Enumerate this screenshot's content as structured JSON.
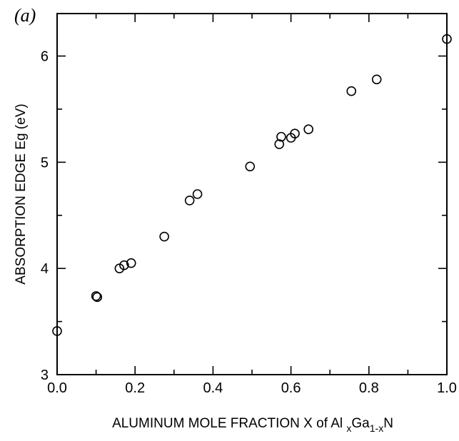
{
  "chart_data": {
    "type": "scatter",
    "panel_label": "(a)",
    "xlabel": {
      "main": "ALUMINUM MOLE FRACTION  X  of  Al ",
      "sub1": "x",
      "mid": "Ga",
      "sub2": "1-x",
      "end": "N"
    },
    "ylabel": "ABSORPTION EDGE  Eg  (eV)",
    "xlim": [
      0.0,
      1.0
    ],
    "ylim": [
      3.0,
      6.4
    ],
    "xticks": [
      "0.0",
      "0.2",
      "0.4",
      "0.6",
      "0.8",
      "1.0"
    ],
    "yticks": [
      "3",
      "4",
      "5",
      "6"
    ],
    "grid": false,
    "series": [
      {
        "points": [
          {
            "x": 0.0,
            "y": 3.41
          },
          {
            "x": 0.1,
            "y": 3.74
          },
          {
            "x": 0.103,
            "y": 3.73
          },
          {
            "x": 0.16,
            "y": 4.0
          },
          {
            "x": 0.172,
            "y": 4.03
          },
          {
            "x": 0.19,
            "y": 4.05
          },
          {
            "x": 0.275,
            "y": 4.3
          },
          {
            "x": 0.34,
            "y": 4.64
          },
          {
            "x": 0.36,
            "y": 4.7
          },
          {
            "x": 0.495,
            "y": 4.96
          },
          {
            "x": 0.57,
            "y": 5.17
          },
          {
            "x": 0.575,
            "y": 5.24
          },
          {
            "x": 0.6,
            "y": 5.23
          },
          {
            "x": 0.61,
            "y": 5.27
          },
          {
            "x": 0.645,
            "y": 5.31
          },
          {
            "x": 0.755,
            "y": 5.67
          },
          {
            "x": 0.82,
            "y": 5.78
          },
          {
            "x": 1.0,
            "y": 6.16
          }
        ]
      }
    ]
  }
}
